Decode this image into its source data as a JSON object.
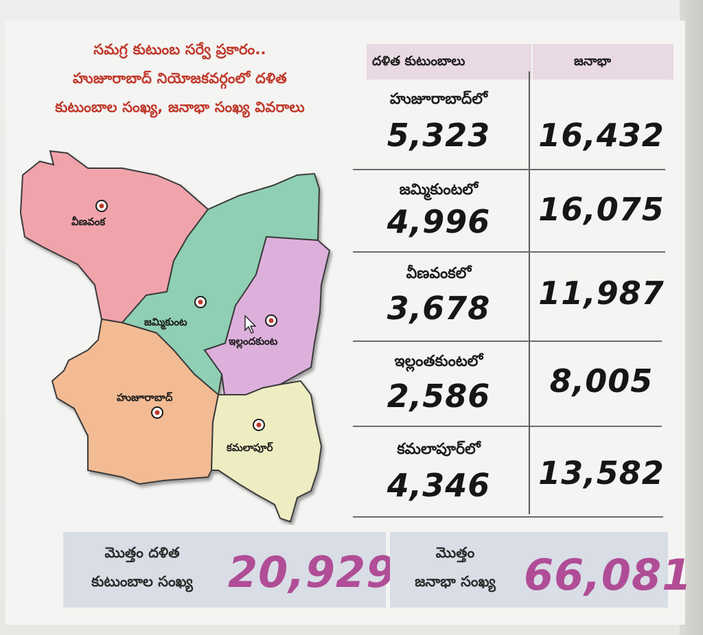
{
  "title": {
    "line1": "సమగ్ర కుటుంబ సర్వే ప్రకారం..",
    "line2": "హుజూరాబాద్ నియోజకవర్గంలో దళిత",
    "line3": "కుటుంబాల సంఖ్య, జనాభా సంఖ్య వివరాలు"
  },
  "map": {
    "regions": [
      {
        "name": "వీణవంక",
        "color": "#f0a3ab"
      },
      {
        "name": "జమ్మికుంట",
        "color": "#8fcfb3"
      },
      {
        "name": "ఇల్లందకుంట",
        "color": "#ddb0dc"
      },
      {
        "name": "హుజూరాబాద్",
        "color": "#f2bb93"
      },
      {
        "name": "కమలాపూర్",
        "color": "#eeedc2"
      }
    ],
    "marker_icon": "location-dot-icon"
  },
  "table": {
    "header": {
      "families": "దళిత కుటుంబాలు",
      "population": "జనాభా"
    },
    "rows": [
      {
        "label": "హుజూరాబాద్‌లో",
        "families": "5,323",
        "population": "16,432"
      },
      {
        "label": "జమ్మికుంటలో",
        "families": "4,996",
        "population": "16,075"
      },
      {
        "label": "వీణవంకలో",
        "families": "3,678",
        "population": "11,987"
      },
      {
        "label": "ఇల్లంతకుంటలో",
        "families": "2,586",
        "population": "8,005"
      },
      {
        "label": "కమలాపూర్‌లో",
        "families": "4,346",
        "population": "13,582"
      }
    ]
  },
  "totals": {
    "families_label1": "మొత్తం దళిత",
    "families_label2": "కుటుంబాల సంఖ్య",
    "families_value": "20,929",
    "population_label1": "మొత్తం",
    "population_label2": "జనాభా సంఖ్య",
    "population_value": "66,081"
  },
  "colors": {
    "title_red": "#c0392b",
    "totals_magenta": "#b04d96",
    "header_pink": "#e8d9e2",
    "totals_bg": "#d9dde6"
  }
}
